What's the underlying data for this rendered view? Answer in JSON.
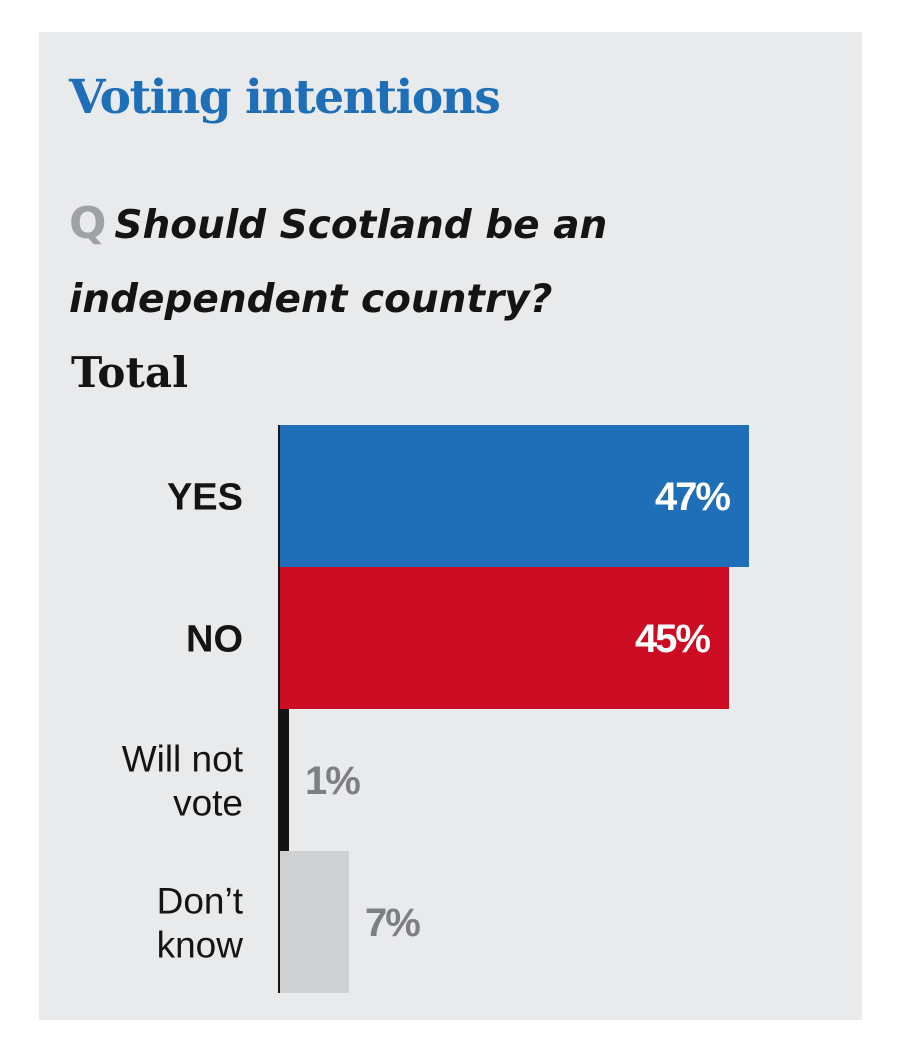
{
  "title": "Voting intentions",
  "question": {
    "marker": "Q",
    "line1": "Should Scotland be an",
    "line2": "independent country?"
  },
  "section_label": "Total",
  "colors": {
    "title": "#1f6fb8",
    "yes": "#1f6fb8",
    "no": "#cb0c22",
    "will_not_vote": "#141414",
    "dont_know": "#cfd0d2",
    "muted_value": "#7d7f82"
  },
  "chart_data": {
    "type": "bar",
    "orientation": "horizontal",
    "title": "Voting intentions",
    "subtitle": "Should Scotland be an independent country?",
    "categories": [
      [
        "YES"
      ],
      [
        "NO"
      ],
      [
        "Will not",
        "vote"
      ],
      [
        "Don’t",
        "know"
      ]
    ],
    "values": [
      47,
      45,
      1,
      7
    ],
    "value_labels": [
      "47%",
      "45%",
      "1%",
      "7%"
    ],
    "units": "%",
    "grid": false
  }
}
